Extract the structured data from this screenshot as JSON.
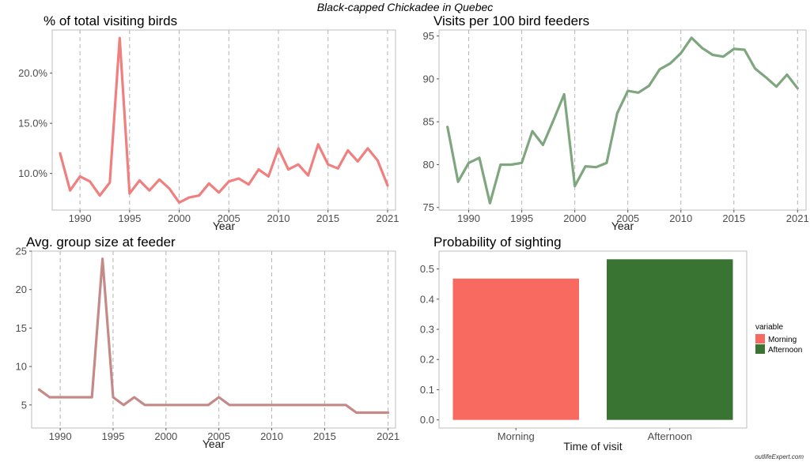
{
  "suptitle": "Black-capped Chickadee in Quebec",
  "watermark": "outlifeExpert.com",
  "chart_data": [
    {
      "type": "line",
      "title": "% of total visiting birds",
      "xlabel": "Year",
      "ylabel": "",
      "color": "#f08080",
      "x": [
        1988,
        1989,
        1990,
        1991,
        1992,
        1993,
        1994,
        1995,
        1996,
        1997,
        1998,
        1999,
        2000,
        2001,
        2002,
        2003,
        2004,
        2005,
        2006,
        2007,
        2008,
        2009,
        2010,
        2011,
        2012,
        2013,
        2014,
        2015,
        2016,
        2017,
        2018,
        2019,
        2020,
        2021
      ],
      "y": [
        12.0,
        8.3,
        9.7,
        9.2,
        7.8,
        9.1,
        23.5,
        8.0,
        9.3,
        8.3,
        9.4,
        8.5,
        7.1,
        7.6,
        7.8,
        9.0,
        8.1,
        9.2,
        9.5,
        8.9,
        10.4,
        9.7,
        12.5,
        10.4,
        10.9,
        9.8,
        12.9,
        10.9,
        10.5,
        12.3,
        11.2,
        12.5,
        11.3,
        8.8
      ],
      "xticks": [
        1990,
        1995,
        2000,
        2005,
        2010,
        2015,
        2021
      ],
      "yticks": [
        10,
        15,
        20
      ],
      "ytick_labels": [
        "10.0%",
        "15.0%",
        "20.0%"
      ],
      "xlim": [
        1987.2,
        2021.8
      ],
      "ylim": [
        6.35,
        24.3
      ],
      "grid": "vertical dashed"
    },
    {
      "type": "line",
      "title": "Visits per 100 bird feeders",
      "xlabel": "Year",
      "ylabel": "",
      "color": "#7fa67f",
      "x": [
        1988,
        1989,
        1990,
        1991,
        1992,
        1993,
        1994,
        1995,
        1996,
        1997,
        1998,
        1999,
        2000,
        2001,
        2002,
        2003,
        2004,
        2005,
        2006,
        2007,
        2008,
        2009,
        2010,
        2011,
        2012,
        2013,
        2014,
        2015,
        2016,
        2017,
        2018,
        2019,
        2020,
        2021
      ],
      "y": [
        84.4,
        78.0,
        80.2,
        80.8,
        75.5,
        80.0,
        80.0,
        80.2,
        83.9,
        82.3,
        85.2,
        88.2,
        77.5,
        79.8,
        79.7,
        80.2,
        86.0,
        88.6,
        88.4,
        89.2,
        91.1,
        91.8,
        93.0,
        94.8,
        93.6,
        92.8,
        92.6,
        93.5,
        93.4,
        91.2,
        90.2,
        89.1,
        90.5,
        88.9
      ],
      "xticks": [
        1990,
        1995,
        2000,
        2005,
        2010,
        2015,
        2021
      ],
      "yticks": [
        75,
        80,
        85,
        90,
        95
      ],
      "ytick_labels": [
        "75",
        "80",
        "85",
        "90",
        "95"
      ],
      "xlim": [
        1987.2,
        2021.8
      ],
      "ylim": [
        74.7,
        95.7
      ],
      "grid": "vertical dashed"
    },
    {
      "type": "line",
      "title": "Avg. group size at feeder",
      "xlabel": "Year",
      "ylabel": "",
      "color": "#c48a88",
      "x": [
        1988,
        1989,
        1990,
        1991,
        1992,
        1993,
        1994,
        1995,
        1996,
        1997,
        1998,
        1999,
        2000,
        2001,
        2002,
        2003,
        2004,
        2005,
        2006,
        2007,
        2008,
        2009,
        2010,
        2011,
        2012,
        2013,
        2014,
        2015,
        2016,
        2017,
        2018,
        2019,
        2020,
        2021
      ],
      "y": [
        7,
        6,
        6,
        6,
        6,
        6,
        24,
        6,
        5,
        6,
        5,
        5,
        5,
        5,
        5,
        5,
        5,
        6,
        5,
        5,
        5,
        5,
        5,
        5,
        5,
        5,
        5,
        5,
        5,
        5,
        4,
        4,
        4,
        4
      ],
      "xticks": [
        1990,
        1995,
        2000,
        2005,
        2010,
        2015,
        2021
      ],
      "yticks": [
        5,
        10,
        15,
        20,
        25
      ],
      "ytick_labels": [
        "5",
        "10",
        "15",
        "20",
        "25"
      ],
      "xlim": [
        1987.3,
        2021.7
      ],
      "ylim": [
        2.0,
        25.0
      ],
      "grid": "vertical dashed"
    },
    {
      "type": "bar",
      "title": "Probability of sighting",
      "xlabel": "Time of visit",
      "ylabel": "",
      "categories": [
        "Morning",
        "Afternoon"
      ],
      "values": [
        0.468,
        0.532
      ],
      "colors": [
        "#f8695f",
        "#3a7432"
      ],
      "yticks": [
        0,
        0.1,
        0.2,
        0.3,
        0.4,
        0.5
      ],
      "ytick_labels": [
        "0.0",
        "0.1",
        "0.2",
        "0.3",
        "0.4",
        "0.5"
      ],
      "ylim": [
        -0.027,
        0.559
      ],
      "legend": {
        "title": "variable",
        "items": [
          {
            "label": "Morning",
            "color": "#f8695f"
          },
          {
            "label": "Afternoon",
            "color": "#3a7432"
          }
        ],
        "position": "right"
      }
    }
  ]
}
